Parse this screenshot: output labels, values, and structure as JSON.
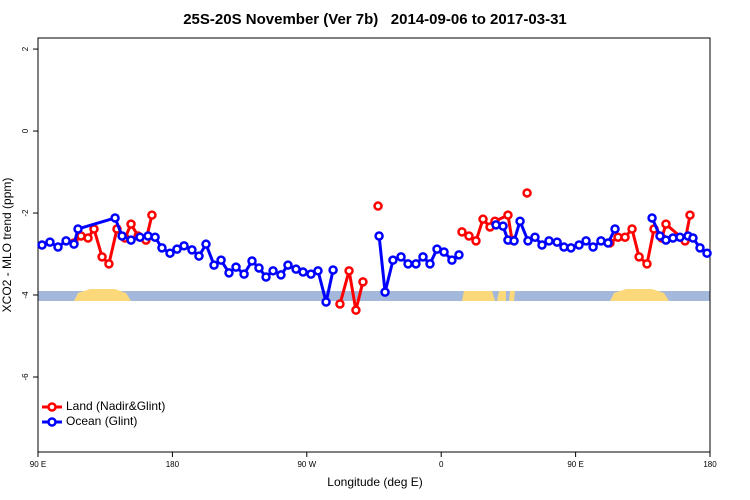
{
  "chart_data": {
    "type": "line",
    "title": "25S-20S November (Ver 7b)   2014-09-06 to 2017-03-31",
    "x_label": "Longitude (deg E)",
    "y_label": "XCO2 - MLO trend (ppm)",
    "xlim": [
      90,
      540
    ],
    "ylim": [
      -7.83,
      2.27
    ],
    "xticks": [
      {
        "value": 90,
        "label": "90 E"
      },
      180,
      {
        "value": 270,
        "label": "90 W"
      },
      {
        "value": 360,
        "label": "0"
      },
      {
        "value": 450,
        "label": "90 E"
      },
      {
        "value": 540,
        "label": "180"
      }
    ],
    "yticks": [
      2,
      0,
      -2,
      -4,
      -6
    ],
    "legend": "bottomleft",
    "series": [
      {
        "name": "Land (Nadir&Glint)",
        "color": "#ff0000",
        "x": [
          114.1,
          118.8,
          123.5,
          127.5,
          132.9,
          137.5,
          142.9,
          148.3,
          152.3,
          157.0,
          162.3,
          166.3,
          null,
          292.2,
          298.3,
          302.9,
          307.6,
          null,
          317.7,
          null,
          373.9,
          378.6,
          383.3,
          388.0,
          392.7,
          396.0,
          404.7,
          407.4,
          null,
          417.5,
          null,
          473.0,
          478.4,
          483.1,
          487.8,
          492.5,
          497.8,
          502.5,
          507.8,
          510.5,
          523.3,
          526.6
        ],
        "values": [
          -2.73,
          -2.56,
          -2.61,
          -2.39,
          -3.07,
          -3.24,
          -2.39,
          -2.61,
          -2.27,
          -2.56,
          -2.66,
          -2.05,
          null,
          -4.22,
          -3.41,
          -4.37,
          -3.68,
          null,
          -1.83,
          null,
          -2.46,
          -2.56,
          -2.68,
          -2.15,
          -2.34,
          -2.2,
          -2.05,
          -2.66,
          null,
          -1.51,
          null,
          -2.73,
          -2.59,
          -2.59,
          -2.39,
          -3.07,
          -3.24,
          -2.39,
          -2.61,
          -2.27,
          -2.68,
          -2.05
        ]
      },
      {
        "name": "Ocean (Glint)",
        "color": "#0000ff",
        "x": [
          92.7,
          98.0,
          103.4,
          108.8,
          114.1,
          116.8,
          141.6,
          146.3,
          152.3,
          158.3,
          163.7,
          168.4,
          173.0,
          178.4,
          183.1,
          187.8,
          193.1,
          197.8,
          202.5,
          207.9,
          212.6,
          217.9,
          222.6,
          228.0,
          233.3,
          238.0,
          242.7,
          247.4,
          252.7,
          257.4,
          262.8,
          267.5,
          272.8,
          277.5,
          282.9,
          287.6,
          null,
          318.4,
          322.4,
          327.7,
          333.1,
          337.8,
          343.1,
          347.8,
          352.5,
          357.2,
          361.9,
          367.2,
          371.9,
          null,
          396.7,
          401.4,
          404.7,
          408.8,
          412.8,
          418.1,
          422.8,
          427.5,
          432.2,
          437.6,
          442.2,
          446.9,
          452.3,
          457.0,
          461.7,
          467.0,
          471.7,
          476.4,
          null,
          501.2,
          506.5,
          510.5,
          515.2,
          519.9,
          525.3,
          528.6,
          533.3,
          538.0
        ],
        "values": [
          -2.78,
          -2.71,
          -2.83,
          -2.68,
          -2.76,
          -2.39,
          -2.12,
          -2.56,
          -2.66,
          -2.59,
          -2.56,
          -2.59,
          -2.85,
          -2.98,
          -2.88,
          -2.8,
          -2.9,
          -3.05,
          -2.76,
          -3.27,
          -3.15,
          -3.46,
          -3.32,
          -3.49,
          -3.17,
          -3.34,
          -3.56,
          -3.41,
          -3.51,
          -3.27,
          -3.37,
          -3.44,
          -3.49,
          -3.41,
          -4.17,
          -3.39,
          null,
          -2.56,
          -3.93,
          -3.15,
          -3.07,
          -3.24,
          -3.24,
          -3.07,
          -3.24,
          -2.88,
          -2.95,
          -3.15,
          -3.02,
          null,
          -2.29,
          -2.32,
          -2.66,
          -2.68,
          -2.2,
          -2.68,
          -2.59,
          -2.78,
          -2.68,
          -2.71,
          -2.83,
          -2.85,
          -2.78,
          -2.68,
          -2.83,
          -2.68,
          -2.73,
          -2.39,
          null,
          -2.12,
          -2.56,
          -2.66,
          -2.61,
          -2.59,
          -2.56,
          -2.61,
          -2.85,
          -2.98
        ]
      }
    ]
  }
}
